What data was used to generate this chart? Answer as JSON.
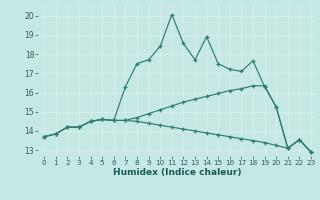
{
  "xlabel": "Humidex (Indice chaleur)",
  "background_color": "#c5e8e5",
  "grid_color": "#daeeed",
  "line_color": "#2e7d6e",
  "xlim": [
    -0.5,
    23.5
  ],
  "ylim": [
    12.7,
    20.6
  ],
  "yticks": [
    13,
    14,
    15,
    16,
    17,
    18,
    19,
    20
  ],
  "xticks": [
    0,
    1,
    2,
    3,
    4,
    5,
    6,
    7,
    8,
    9,
    10,
    11,
    12,
    13,
    14,
    15,
    16,
    17,
    18,
    19,
    20,
    21,
    22,
    23
  ],
  "lines": [
    [
      13.7,
      13.85,
      14.2,
      14.2,
      14.5,
      14.6,
      14.55,
      16.3,
      17.5,
      17.7,
      18.4,
      20.05,
      18.55,
      17.7,
      18.9,
      17.5,
      17.2,
      17.1,
      17.65,
      16.3,
      15.25,
      13.1,
      13.55,
      12.9
    ],
    [
      13.7,
      13.85,
      14.2,
      14.2,
      14.5,
      14.6,
      14.55,
      14.55,
      14.7,
      14.9,
      15.1,
      15.3,
      15.5,
      15.65,
      15.8,
      15.95,
      16.1,
      16.2,
      16.35,
      16.35,
      15.25,
      13.1,
      13.55,
      12.9
    ],
    [
      13.7,
      13.85,
      14.2,
      14.2,
      14.5,
      14.6,
      14.55,
      14.55,
      14.5,
      14.4,
      14.3,
      14.2,
      14.1,
      14.0,
      13.9,
      13.8,
      13.7,
      13.6,
      13.5,
      13.4,
      13.25,
      13.1,
      13.55,
      12.9
    ]
  ],
  "figsize": [
    3.2,
    2.0
  ],
  "dpi": 100
}
